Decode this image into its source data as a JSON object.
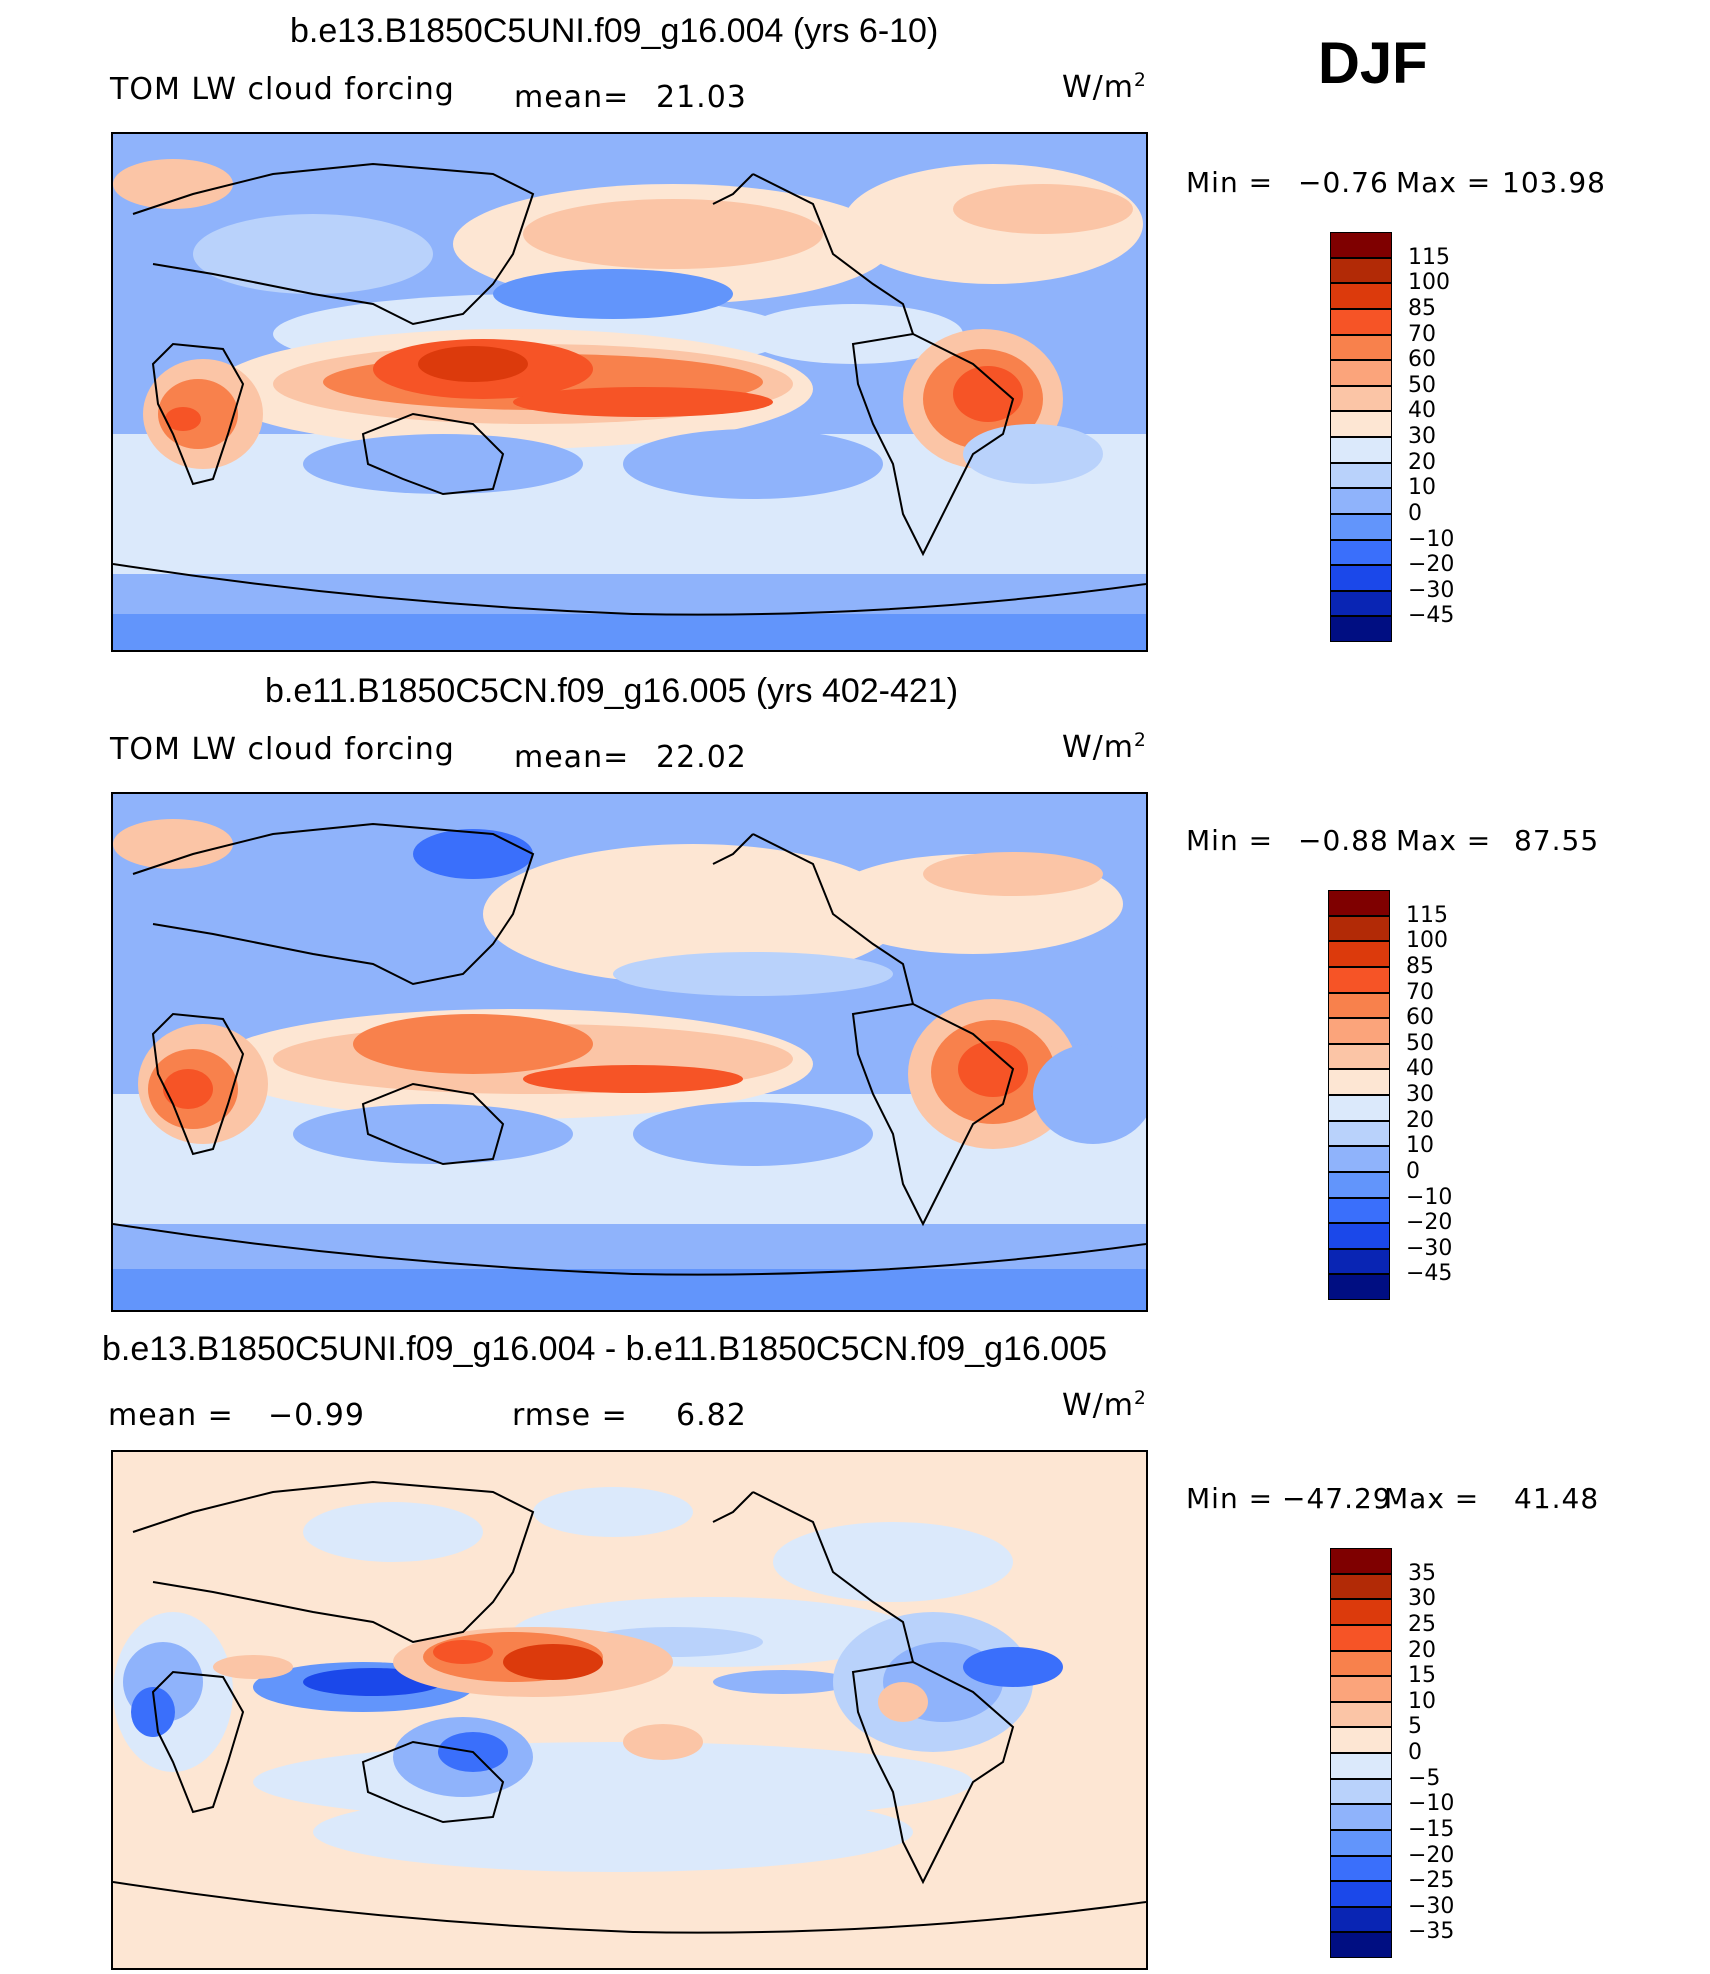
{
  "season": "DJF",
  "units_label": "W/m",
  "units_sup": "2",
  "panels": [
    {
      "title": "b.e13.B1850C5UNI.f09_g16.004 (yrs 6-10)",
      "left_label": "TOM LW cloud forcing",
      "mid_label": "mean=",
      "mid_value": "21.03",
      "min_label": "Min =",
      "min_value": "−0.76",
      "max_label": "Max =",
      "max_value": "103.98",
      "colorbar": [
        "115",
        "100",
        "85",
        "70",
        "60",
        "50",
        "40",
        "30",
        "20",
        "10",
        "0",
        "−10",
        "−20",
        "−30",
        "−45"
      ]
    },
    {
      "title": "b.e11.B1850C5CN.f09_g16.005 (yrs 402-421)",
      "left_label": "TOM LW cloud forcing",
      "mid_label": "mean=",
      "mid_value": "22.02",
      "min_label": "Min =",
      "min_value": "−0.88",
      "max_label": "Max =",
      "max_value": "87.55",
      "colorbar": [
        "115",
        "100",
        "85",
        "70",
        "60",
        "50",
        "40",
        "30",
        "20",
        "10",
        "0",
        "−10",
        "−20",
        "−30",
        "−45"
      ]
    },
    {
      "title": "b.e13.B1850C5UNI.f09_g16.004 - b.e11.B1850C5CN.f09_g16.005",
      "left_label": "mean =",
      "left_value": "−0.99",
      "mid_label": "rmse =",
      "mid_value": "6.82",
      "min_label": "Min =",
      "min_value": "−47.29",
      "max_label": "Max =",
      "max_value": "41.48",
      "colorbar": [
        "35",
        "30",
        "25",
        "20",
        "15",
        "10",
        "5",
        "0",
        "−5",
        "−10",
        "−15",
        "−20",
        "−25",
        "−30",
        "−35"
      ]
    }
  ],
  "colors": {
    "scale": [
      "#7f0000",
      "#b22a06",
      "#dc3a0c",
      "#f65426",
      "#f8814c",
      "#fba47b",
      "#fbc5a6",
      "#fde6d3",
      "#dbe9fb",
      "#b9d2fb",
      "#8fb3fb",
      "#6295fb",
      "#3a6ffb",
      "#1b48ea",
      "#0925b4",
      "#000e82"
    ]
  }
}
